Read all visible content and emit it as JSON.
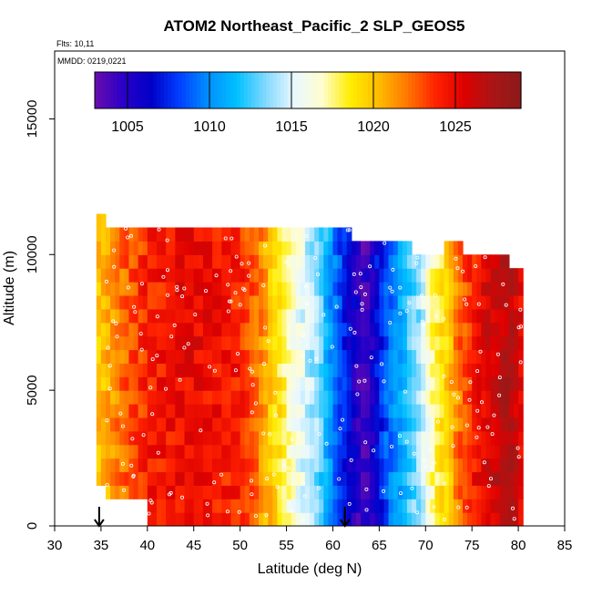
{
  "chart_data": {
    "type": "heatmap",
    "title": "ATOM2 Northeast_Pacific_2 SLP_GEOS5",
    "annotations": {
      "flights": "Flts: 10,11",
      "dates": "MMDD: 0219,0221"
    },
    "xlabel": "Latitude (deg N)",
    "ylabel": "Altitude (m)",
    "xlim": [
      30,
      85
    ],
    "ylim": [
      0,
      17500
    ],
    "x_ticks": [
      30,
      35,
      40,
      45,
      50,
      55,
      60,
      65,
      70,
      75,
      80,
      85
    ],
    "y_ticks": [
      0,
      5000,
      10000,
      15000
    ],
    "colorbar": {
      "range": [
        1003,
        1029
      ],
      "ticks": [
        1005,
        1010,
        1015,
        1020,
        1025
      ],
      "colors": [
        "#6a0dad",
        "#2a00c8",
        "#0000c8",
        "#0040ff",
        "#0090ff",
        "#00c0ff",
        "#80d8ff",
        "#e8f8ff",
        "#fffdd0",
        "#ffee00",
        "#ffbb00",
        "#ff7700",
        "#ff2200",
        "#dd0000",
        "#aa1515",
        "#8b1a1a"
      ]
    },
    "markers": {
      "lat": [
        34.8,
        61.3
      ],
      "label": "arrow"
    },
    "profile": {
      "lat": [
        35,
        37,
        40,
        45,
        50,
        52,
        54,
        56,
        58,
        59.5,
        60.5,
        61.5,
        62.5,
        63.5,
        64.5,
        66,
        68,
        69.5,
        70.5,
        72,
        73.5,
        75,
        77,
        79,
        80.5
      ],
      "slp": [
        1020,
        1022,
        1024,
        1025,
        1024,
        1022,
        1019,
        1016,
        1014,
        1011,
        1009,
        1007,
        1005,
        1004,
        1006,
        1009,
        1012,
        1014,
        1017,
        1019,
        1022,
        1024,
        1026,
        1027,
        1025
      ]
    },
    "coverage": [
      {
        "lat": [
          34.5,
          35.5
        ],
        "alt": [
          1500,
          11500
        ]
      },
      {
        "lat": [
          35.5,
          40.0
        ],
        "alt": [
          1000,
          11000
        ]
      },
      {
        "lat": [
          40.0,
          48.0
        ],
        "alt": [
          0,
          11200
        ]
      },
      {
        "lat": [
          48.0,
          55.0
        ],
        "alt": [
          0,
          11200
        ]
      },
      {
        "lat": [
          55.0,
          62.0
        ],
        "alt": [
          0,
          11000
        ]
      },
      {
        "lat": [
          62.0,
          68.7
        ],
        "alt": [
          0,
          10600
        ]
      },
      {
        "lat": [
          68.7,
          72.0
        ],
        "alt": [
          0,
          10000
        ]
      },
      {
        "lat": [
          72.0,
          74.0
        ],
        "alt": [
          0,
          10300
        ]
      },
      {
        "lat": [
          74.0,
          79.0
        ],
        "alt": [
          0,
          9900
        ]
      },
      {
        "lat": [
          79.0,
          80.5
        ],
        "alt": [
          0,
          9300
        ]
      }
    ]
  }
}
